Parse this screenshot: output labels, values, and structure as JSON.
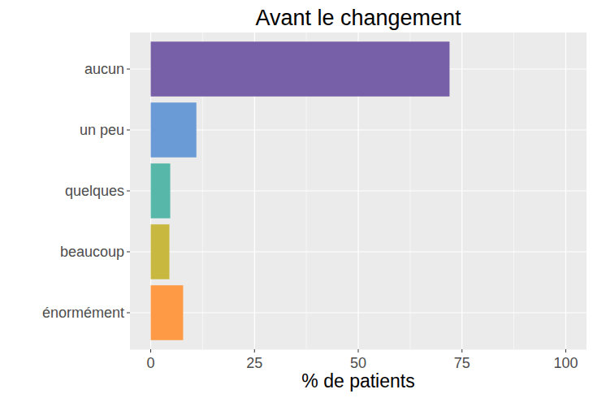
{
  "chart_data": {
    "type": "bar",
    "title": "Avant le changement",
    "x_label": "% de patients",
    "orientation": "horizontal",
    "categories": [
      "aucun",
      "un peu",
      "quelques",
      "beaucoup",
      "énormément"
    ],
    "values": [
      72,
      11,
      4.7,
      4.5,
      7.8
    ],
    "colors": [
      "#7760a8",
      "#6a9bd6",
      "#57b8a9",
      "#c9b840",
      "#fe9a45"
    ],
    "xlim": [
      -5,
      105
    ],
    "xticks": [
      0,
      25,
      50,
      75,
      100
    ],
    "grid": true
  }
}
